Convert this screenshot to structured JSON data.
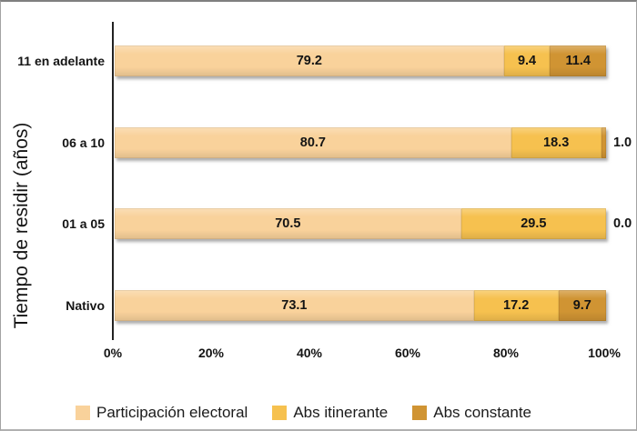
{
  "chart_data": {
    "type": "bar",
    "variant": "horizontal-stacked",
    "title": "",
    "xlabel": "",
    "ylabel": "Tiempo de residir (años)",
    "xlim": [
      0,
      100
    ],
    "x_ticks": [
      "0%",
      "20%",
      "40%",
      "60%",
      "80%",
      "100%"
    ],
    "grid": false,
    "legend_position": "bottom",
    "value_labels": true,
    "categories": [
      "11 en adelante",
      "06 a 10",
      "01 a 05",
      "Nativo"
    ],
    "series": [
      {
        "name": "Participación electoral",
        "color": "#F9D29B",
        "values": [
          79.2,
          80.7,
          70.5,
          73.1
        ]
      },
      {
        "name": "Abs itinerante",
        "color": "#F6C14F",
        "values": [
          9.4,
          18.3,
          29.5,
          17.2
        ]
      },
      {
        "name": "Abs constante",
        "color": "#D09433",
        "values": [
          11.4,
          1.0,
          0.0,
          9.7
        ]
      }
    ]
  }
}
